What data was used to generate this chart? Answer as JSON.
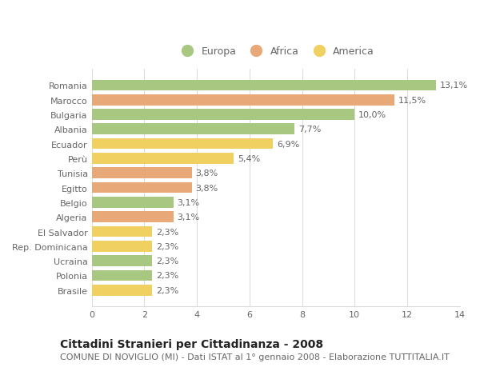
{
  "categories": [
    "Romania",
    "Marocco",
    "Bulgaria",
    "Albania",
    "Ecuador",
    "Perù",
    "Tunisia",
    "Egitto",
    "Belgio",
    "Algeria",
    "El Salvador",
    "Rep. Dominicana",
    "Ucraina",
    "Polonia",
    "Brasile"
  ],
  "values": [
    13.1,
    11.5,
    10.0,
    7.7,
    6.9,
    5.4,
    3.8,
    3.8,
    3.1,
    3.1,
    2.3,
    2.3,
    2.3,
    2.3,
    2.3
  ],
  "labels": [
    "13,1%",
    "11,5%",
    "10,0%",
    "7,7%",
    "6,9%",
    "5,4%",
    "3,8%",
    "3,8%",
    "3,1%",
    "3,1%",
    "2,3%",
    "2,3%",
    "2,3%",
    "2,3%",
    "2,3%"
  ],
  "continents": [
    "Europa",
    "Africa",
    "Europa",
    "Europa",
    "America",
    "America",
    "Africa",
    "Africa",
    "Europa",
    "Africa",
    "America",
    "America",
    "Europa",
    "Europa",
    "America"
  ],
  "colors": {
    "Europa": "#a8c882",
    "Africa": "#e8a878",
    "America": "#f0d060"
  },
  "xlim": [
    0,
    14
  ],
  "xticks": [
    0,
    2,
    4,
    6,
    8,
    10,
    12,
    14
  ],
  "title": "Cittadini Stranieri per Cittadinanza - 2008",
  "subtitle": "COMUNE DI NOVIGLIO (MI) - Dati ISTAT al 1° gennaio 2008 - Elaborazione TUTTITALIA.IT",
  "background_color": "#ffffff",
  "bar_height": 0.75,
  "grid_color": "#dddddd",
  "label_fontsize": 8,
  "tick_fontsize": 8,
  "title_fontsize": 10,
  "subtitle_fontsize": 8,
  "text_color": "#666666"
}
